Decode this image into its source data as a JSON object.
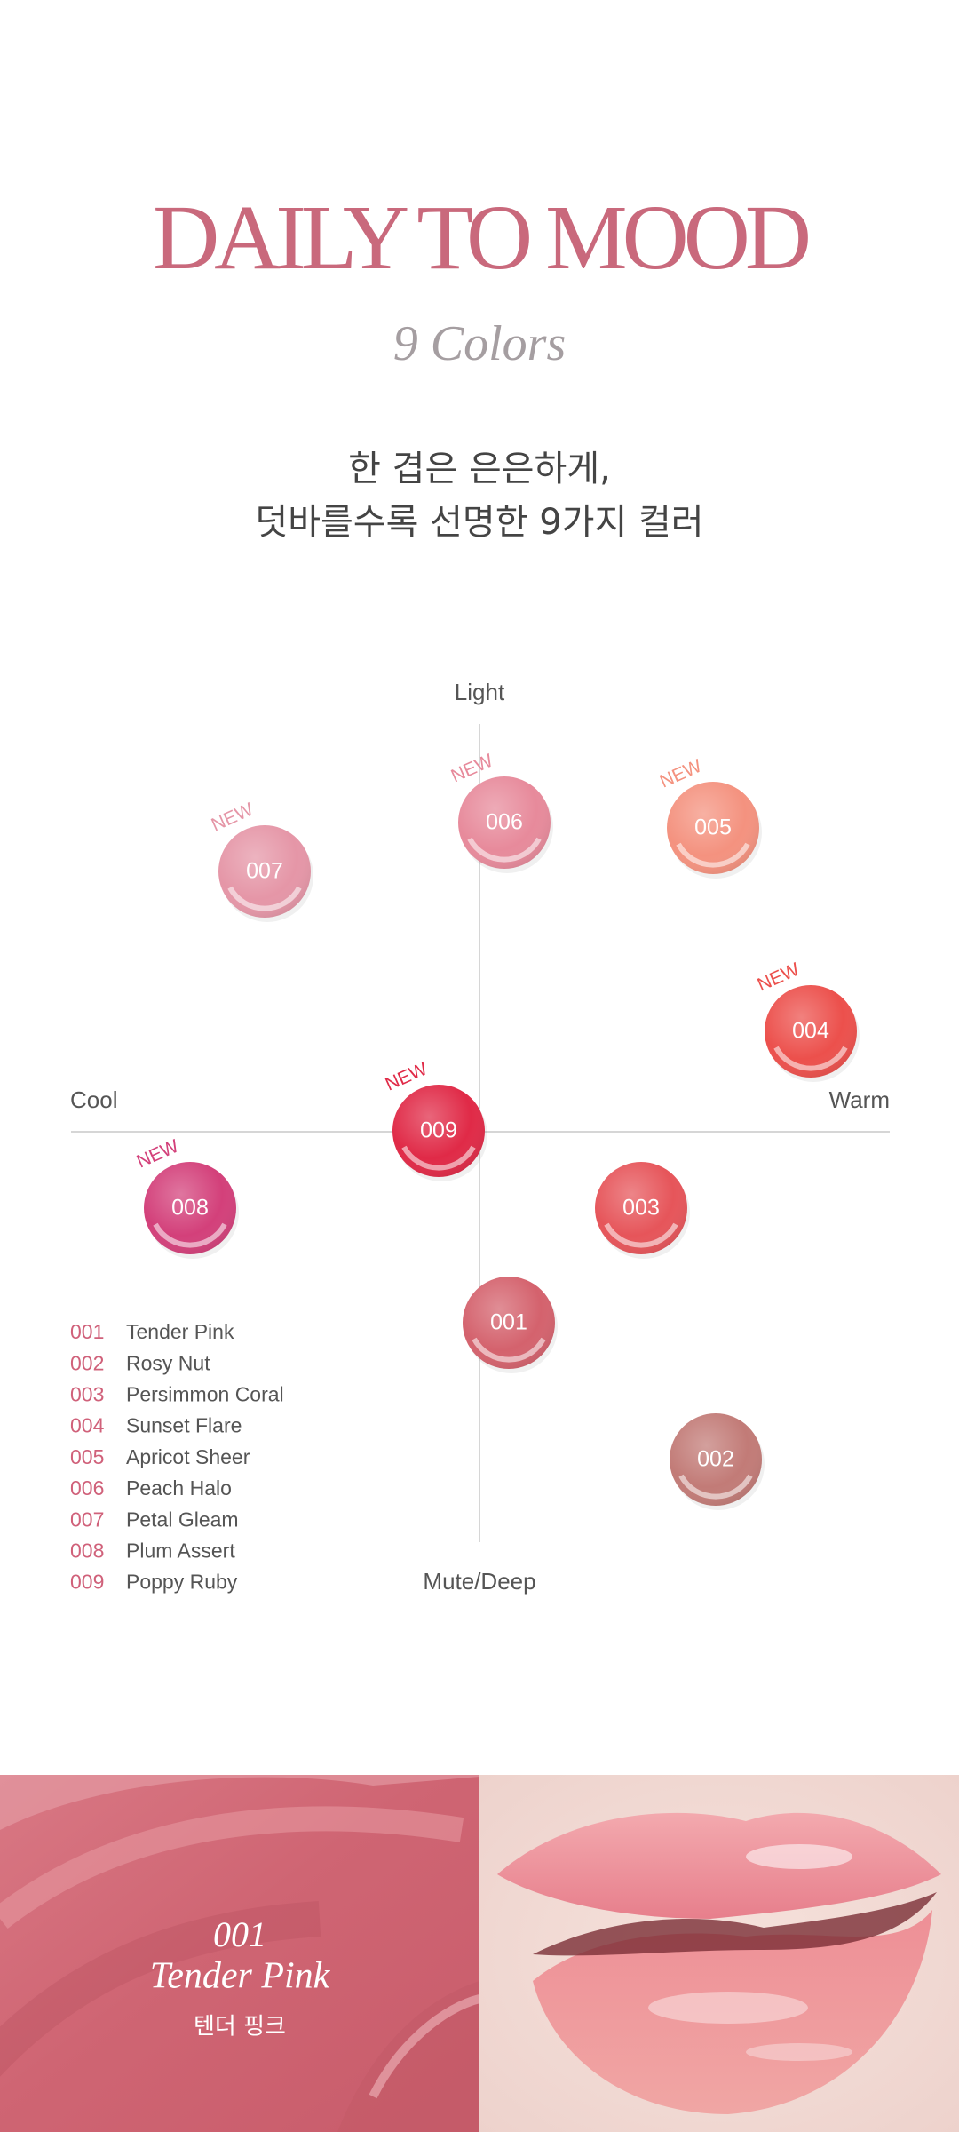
{
  "header": {
    "title": "DAILY TO MOOD",
    "subtitle": "9 Colors",
    "description": [
      "한 겹은 은은하게,",
      "덧바를수록 선명한 9가지 컬러"
    ]
  },
  "color_map": {
    "axis_labels": {
      "top": "Light",
      "bottom": "Mute/Deep",
      "left": "Cool",
      "right": "Warm"
    },
    "swatches": [
      {
        "code": "001",
        "color": "#d4626d"
      },
      {
        "code": "002",
        "color": "#c27b77"
      },
      {
        "code": "003",
        "color": "#e6555a"
      },
      {
        "code": "004",
        "color": "#ec504c",
        "badge": "NEW"
      },
      {
        "code": "005",
        "color": "#f4927f",
        "badge": "NEW"
      },
      {
        "code": "006",
        "color": "#e78a9b",
        "badge": "NEW"
      },
      {
        "code": "007",
        "color": "#e596a7",
        "badge": "NEW"
      },
      {
        "code": "008",
        "color": "#d3407a",
        "badge": "NEW"
      },
      {
        "code": "009",
        "color": "#e02a47",
        "badge": "NEW"
      }
    ]
  },
  "legend": [
    {
      "code": "001",
      "name": "Tender Pink"
    },
    {
      "code": "002",
      "name": "Rosy Nut"
    },
    {
      "code": "003",
      "name": "Persimmon Coral"
    },
    {
      "code": "004",
      "name": "Sunset Flare"
    },
    {
      "code": "005",
      "name": "Apricot Sheer"
    },
    {
      "code": "006",
      "name": "Peach Halo"
    },
    {
      "code": "007",
      "name": "Petal Gleam"
    },
    {
      "code": "008",
      "name": "Plum Assert"
    },
    {
      "code": "009",
      "name": "Poppy Ruby"
    }
  ],
  "feature": {
    "code": "001",
    "name": "Tender Pink",
    "name_ko": "텐더 핑크"
  }
}
